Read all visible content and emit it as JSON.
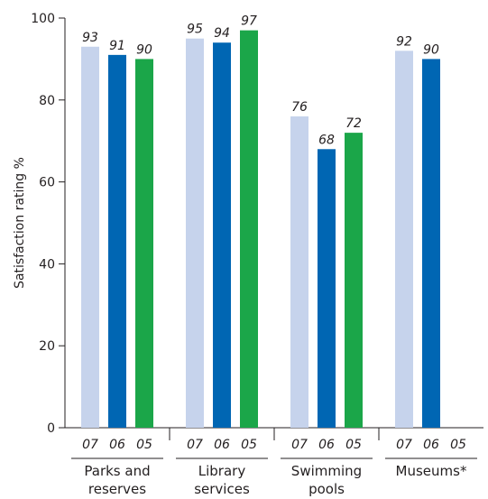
{
  "chart_data": {
    "type": "bar",
    "title": "",
    "xlabel": "",
    "ylabel": "Satisfaction rating %",
    "ylim": [
      0,
      100
    ],
    "yticks": [
      0,
      20,
      40,
      60,
      80,
      100
    ],
    "grid": false,
    "legend": "none",
    "years": [
      "07",
      "06",
      "05"
    ],
    "year_colors": [
      "#c6d3ec",
      "#0066b3",
      "#1ba649"
    ],
    "categories": [
      {
        "name": "Parks and reserves",
        "lines": [
          "Parks and",
          "reserves"
        ],
        "values": [
          93,
          91,
          90
        ],
        "labels": [
          "93",
          "91",
          "90"
        ]
      },
      {
        "name": "Library services",
        "lines": [
          "Library",
          "services"
        ],
        "values": [
          95,
          94,
          97
        ],
        "labels": [
          "95",
          "94",
          "97"
        ]
      },
      {
        "name": "Swimming pools",
        "lines": [
          "Swimming",
          "pools"
        ],
        "values": [
          76,
          68,
          72
        ],
        "labels": [
          "76",
          "68",
          "72"
        ]
      },
      {
        "name": "Museums*",
        "lines": [
          "Museums*"
        ],
        "values": [
          92,
          90,
          null
        ],
        "labels": [
          "92",
          "90",
          ""
        ]
      }
    ]
  }
}
